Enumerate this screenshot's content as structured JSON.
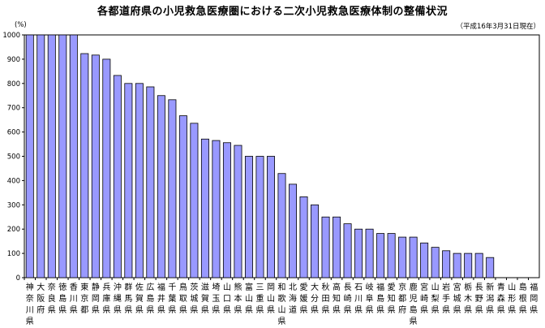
{
  "chart_data": {
    "type": "bar",
    "title": "各都道府県の小児救急医療圏における二次小児救急医療体制の整備状況",
    "subtitle": "（平成16年3月31日現在）",
    "ylabel": "(%)",
    "ylim": [
      0,
      1000
    ],
    "yticks": [
      "0",
      "100",
      "200",
      "300",
      "400",
      "500",
      "600",
      "700",
      "800",
      "900",
      "1000"
    ],
    "grid": false,
    "bar_color": "#9999ff",
    "categories": [
      "神奈川県",
      "大阪府",
      "奈良県",
      "徳島県",
      "香川県",
      "東京都",
      "静岡県",
      "兵庫県",
      "沖縄県",
      "群馬県",
      "佐賀県",
      "広島県",
      "福井県",
      "千葉県",
      "鳥取県",
      "茨城県",
      "滋賀県",
      "埼玉県",
      "山口県",
      "熊本県",
      "富山県",
      "三重県",
      "岡山県",
      "和歌山県",
      "北海道",
      "愛媛県",
      "大分県",
      "秋田県",
      "高知県",
      "長崎県",
      "石川県",
      "岐阜県",
      "福島県",
      "愛知県",
      "京都府",
      "鹿児島県",
      "宮崎県",
      "山梨県",
      "岩手県",
      "宮城県",
      "栃木県",
      "長野県",
      "新潟県",
      "青森県",
      "山形県",
      "島根県",
      "福岡県"
    ],
    "values": [
      1000,
      1000,
      1000,
      1000,
      1000,
      923,
      917,
      900,
      833,
      800,
      800,
      786,
      750,
      733,
      667,
      636,
      571,
      565,
      556,
      545,
      500,
      500,
      500,
      429,
      385,
      333,
      300,
      250,
      250,
      222,
      200,
      200,
      182,
      182,
      167,
      167,
      143,
      125,
      111,
      100,
      100,
      100,
      83,
      0,
      0,
      0,
      0
    ]
  }
}
